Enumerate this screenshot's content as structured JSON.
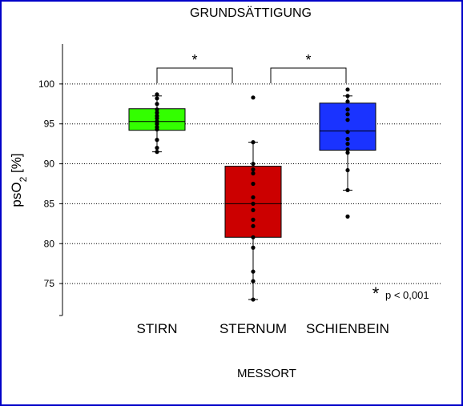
{
  "chart_data": {
    "type": "box",
    "title": "GRUNDSÄTTIGUNG",
    "xlabel": "MESSORT",
    "ylabel_main": "psO",
    "ylabel_sub": "2",
    "ylabel_unit": " [%]",
    "ylim": [
      71,
      105
    ],
    "yticks": [
      75,
      80,
      85,
      90,
      95,
      100
    ],
    "grid": true,
    "categories": [
      "STIRN",
      "STERNUM",
      "SCHIENBEIN"
    ],
    "boxes": [
      {
        "category": "STIRN",
        "color": "#33ff00",
        "q1": 94.2,
        "median": 95.3,
        "q3": 96.9,
        "whisker_low": 91.5,
        "whisker_high": 98.5,
        "points": [
          98.7,
          98.2,
          97.5,
          96.8,
          96.4,
          96.0,
          95.7,
          95.3,
          95.0,
          94.6,
          94.3,
          93.0,
          92.0,
          91.5
        ]
      },
      {
        "category": "STERNUM",
        "color": "#cc0000",
        "q1": 80.8,
        "median": 85.0,
        "q3": 89.7,
        "whisker_low": 73.0,
        "whisker_high": 92.7,
        "points": [
          98.3,
          92.7,
          90.0,
          89.3,
          88.8,
          87.5,
          85.8,
          85.0,
          84.2,
          83.0,
          82.2,
          80.8,
          79.5,
          76.5,
          75.3,
          73.0
        ]
      },
      {
        "category": "SCHIENBEIN",
        "color": "#1a33ff",
        "q1": 91.7,
        "median": 94.1,
        "q3": 97.6,
        "whisker_low": 86.7,
        "whisker_high": 98.5,
        "points": [
          99.3,
          98.5,
          97.8,
          96.8,
          96.2,
          95.5,
          94.0,
          93.1,
          92.5,
          91.8,
          91.4,
          89.2,
          86.7,
          83.4
        ]
      }
    ],
    "significance": [
      {
        "from": "STIRN",
        "to": "STERNUM",
        "label": "*"
      },
      {
        "from": "STERNUM",
        "to": "SCHIENBEIN",
        "label": "*"
      }
    ],
    "annotation": {
      "star": "*",
      "text": "p < 0,001"
    }
  }
}
